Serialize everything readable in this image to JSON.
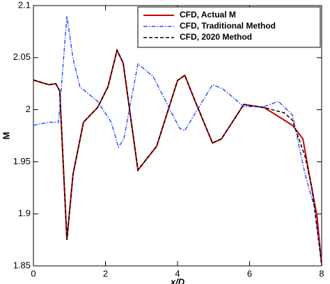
{
  "chart_data": {
    "type": "line",
    "xlabel": "x/D",
    "ylabel": "M",
    "xlim": [
      0,
      8
    ],
    "ylim": [
      1.85,
      2.1
    ],
    "xticks": [
      0,
      2,
      4,
      6,
      8
    ],
    "yticks": [
      1.85,
      1.9,
      1.95,
      2,
      2.05,
      2.1
    ],
    "legend": "upper right",
    "series": [
      {
        "name": "CFD, Actual M",
        "color": "#cc0000",
        "dash": "solid",
        "x": [
          0,
          0.43,
          0.62,
          0.73,
          0.93,
          1.1,
          1.39,
          1.78,
          2.07,
          2.32,
          2.49,
          2.9,
          3.42,
          4.0,
          4.2,
          4.49,
          4.97,
          5.22,
          5.84,
          6.41,
          7.19,
          7.48,
          7.67,
          7.87,
          8
        ],
        "values": [
          2.0285,
          2.024,
          2.025,
          2.018,
          1.875,
          1.938,
          1.988,
          2.002,
          2.022,
          2.057,
          2.045,
          1.942,
          1.965,
          2.028,
          2.033,
          2.008,
          1.968,
          1.972,
          2.005,
          2.002,
          1.985,
          1.972,
          1.935,
          1.898,
          1.851
        ]
      },
      {
        "name": "CFD, Traditional Method",
        "color": "#3355ff",
        "dash": "dashdot",
        "x": [
          0,
          0.43,
          0.7,
          0.93,
          1.1,
          1.29,
          1.78,
          2.16,
          2.36,
          2.51,
          2.9,
          3.32,
          4.06,
          4.2,
          4.97,
          5.26,
          5.84,
          6.41,
          6.8,
          7.19,
          7.54,
          7.81,
          8
        ],
        "values": [
          1.985,
          1.988,
          1.988,
          2.09,
          2.049,
          2.022,
          2.008,
          1.988,
          1.964,
          1.972,
          2.044,
          2.032,
          1.982,
          1.98,
          2.024,
          2.02,
          2.003,
          2.003,
          2.008,
          1.995,
          1.938,
          1.905,
          1.851
        ]
      },
      {
        "name": "CFD, 2020 Method",
        "color": "#000000",
        "dash": "dashed",
        "x": [
          0,
          0.43,
          0.62,
          0.73,
          0.93,
          1.1,
          1.39,
          1.78,
          2.07,
          2.32,
          2.49,
          2.9,
          3.42,
          4.0,
          4.2,
          4.49,
          4.97,
          5.22,
          5.84,
          6.41,
          6.96,
          7.19,
          7.54,
          7.73,
          8
        ],
        "values": [
          2.0285,
          2.024,
          2.025,
          2.018,
          1.875,
          1.938,
          1.988,
          2.002,
          2.022,
          2.057,
          2.045,
          1.942,
          1.965,
          2.028,
          2.033,
          2.008,
          1.968,
          1.972,
          2.005,
          2.002,
          1.997,
          1.99,
          1.955,
          1.925,
          1.851
        ]
      }
    ]
  }
}
